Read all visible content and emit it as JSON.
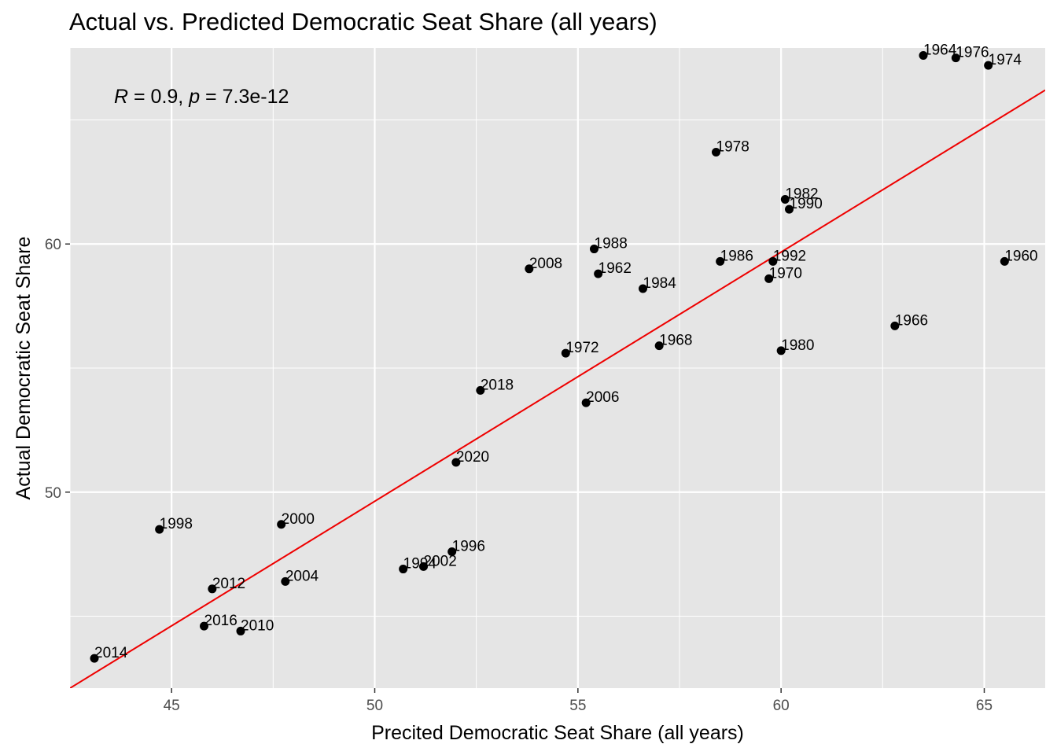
{
  "colors": {
    "panel_background": "#e5e5e5",
    "grid": "#ffffff",
    "point": "#000000",
    "fit_line": "#ee0000",
    "tick_text": "#4d4d4d"
  },
  "chart_data": {
    "type": "scatter",
    "title": "Actual vs. Predicted Democratic Seat Share (all years)",
    "xlabel": "Precited Democratic Seat Share (all years)",
    "ylabel": "Actual Democratic Seat Share",
    "xlim": [
      42.5,
      66.5
    ],
    "ylim": [
      42.1,
      67.9
    ],
    "x_ticks": [
      45,
      50,
      55,
      60,
      65
    ],
    "y_ticks": [
      50,
      60
    ],
    "grid": true,
    "legend": "none",
    "annotation": {
      "r_symbol": "R",
      "r_text": " = 0.9, ",
      "p_symbol": "p",
      "p_text": " = 7.3e-12"
    },
    "fit_line": {
      "x": [
        42.5,
        66.5
      ],
      "y": [
        42.1,
        66.2
      ]
    },
    "points": [
      {
        "label": "1960",
        "x": 65.5,
        "y": 59.3
      },
      {
        "label": "1962",
        "x": 55.5,
        "y": 58.8
      },
      {
        "label": "1964",
        "x": 63.5,
        "y": 67.6
      },
      {
        "label": "1966",
        "x": 62.8,
        "y": 56.7
      },
      {
        "label": "1968",
        "x": 57.0,
        "y": 55.9
      },
      {
        "label": "1970",
        "x": 59.7,
        "y": 58.6
      },
      {
        "label": "1972",
        "x": 54.7,
        "y": 55.6
      },
      {
        "label": "1974",
        "x": 65.1,
        "y": 67.2
      },
      {
        "label": "1976",
        "x": 64.3,
        "y": 67.5
      },
      {
        "label": "1978",
        "x": 58.4,
        "y": 63.7
      },
      {
        "label": "1980",
        "x": 60.0,
        "y": 55.7
      },
      {
        "label": "1982",
        "x": 60.1,
        "y": 61.8
      },
      {
        "label": "1984",
        "x": 56.6,
        "y": 58.2
      },
      {
        "label": "1986",
        "x": 58.5,
        "y": 59.3
      },
      {
        "label": "1988",
        "x": 55.4,
        "y": 59.8
      },
      {
        "label": "1990",
        "x": 60.2,
        "y": 61.4
      },
      {
        "label": "1992",
        "x": 59.8,
        "y": 59.3
      },
      {
        "label": "1994",
        "x": 50.7,
        "y": 46.9
      },
      {
        "label": "1996",
        "x": 51.9,
        "y": 47.6
      },
      {
        "label": "1998",
        "x": 44.7,
        "y": 48.5
      },
      {
        "label": "2000",
        "x": 47.7,
        "y": 48.7
      },
      {
        "label": "2002",
        "x": 51.2,
        "y": 47.0
      },
      {
        "label": "2004",
        "x": 47.8,
        "y": 46.4
      },
      {
        "label": "2006",
        "x": 55.2,
        "y": 53.6
      },
      {
        "label": "2008",
        "x": 53.8,
        "y": 59.0
      },
      {
        "label": "2010",
        "x": 46.7,
        "y": 44.4
      },
      {
        "label": "2012",
        "x": 46.0,
        "y": 46.1
      },
      {
        "label": "2014",
        "x": 43.1,
        "y": 43.3
      },
      {
        "label": "2016",
        "x": 45.8,
        "y": 44.6
      },
      {
        "label": "2018",
        "x": 52.6,
        "y": 54.1
      },
      {
        "label": "2020",
        "x": 52.0,
        "y": 51.2
      }
    ]
  }
}
